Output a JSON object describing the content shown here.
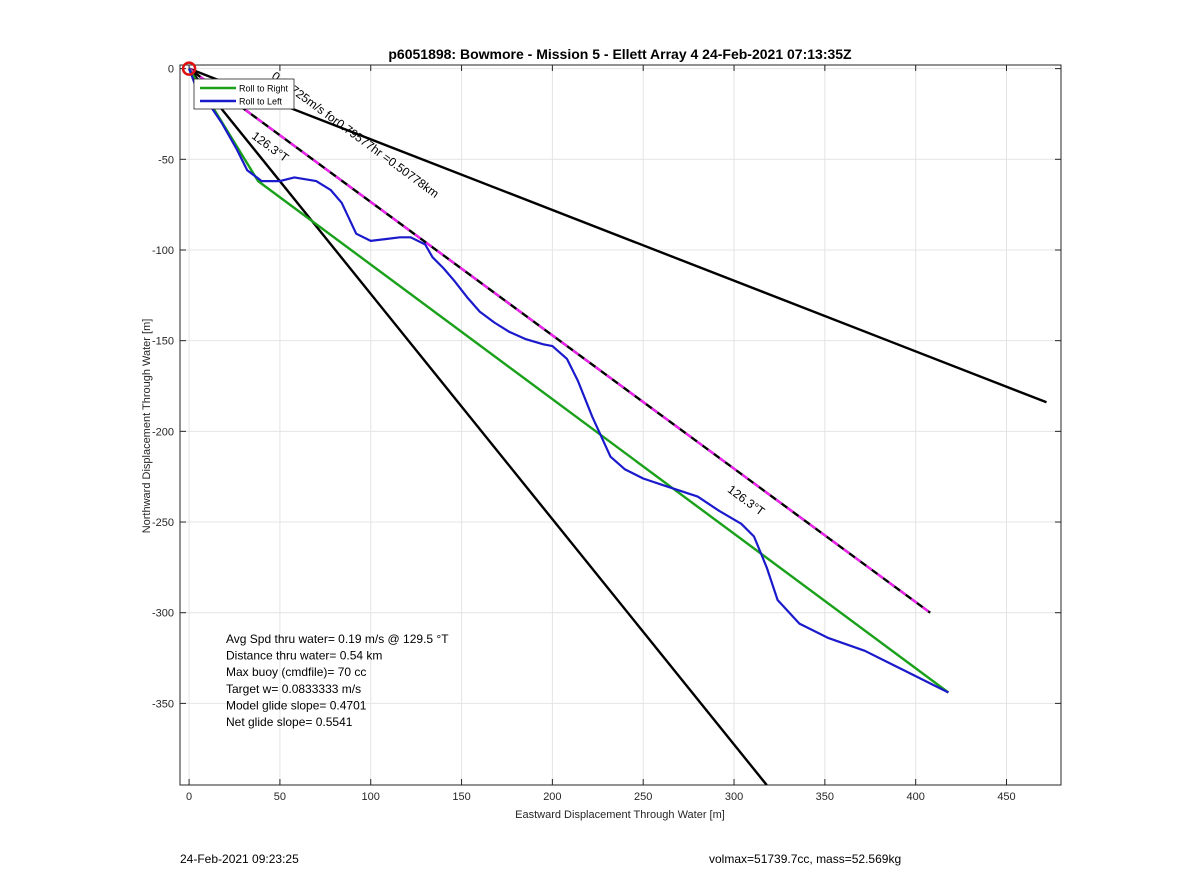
{
  "chart_data": {
    "type": "line",
    "title": "p6051898: Bowmore - Mission 5 - Ellett Array 4 24-Feb-2021 07:13:35Z",
    "xlabel": "Eastward Displacement Through Water [m]",
    "ylabel": "Northward Displacement Through Water [m]",
    "xlim": [
      -5,
      480
    ],
    "ylim": [
      -395,
      2
    ],
    "xticks": [
      0,
      50,
      100,
      150,
      200,
      250,
      300,
      350,
      400,
      450
    ],
    "xtick_labels": [
      "0",
      "50",
      "100",
      "150",
      "200",
      "250",
      "300",
      "350",
      "400",
      "450"
    ],
    "yticks": [
      0,
      -50,
      -100,
      -150,
      -200,
      -250,
      -300,
      -350
    ],
    "ytick_labels": [
      "0",
      "-50",
      "-100",
      "-150",
      "-200",
      "-250",
      "-300",
      "-350"
    ],
    "grid": true,
    "legend_position": "top-left",
    "legend": [
      {
        "label": "Roll to Right",
        "color": "#1aa01a"
      },
      {
        "label": "Roll to Left",
        "color": "#1a1acc"
      }
    ],
    "series": [
      {
        "key": "track",
        "color": "#1a1acc",
        "x": [
          0,
          3,
          10,
          18,
          26,
          32,
          40,
          50,
          58,
          70,
          78,
          84,
          92,
          100,
          108,
          116,
          122,
          130,
          134,
          140,
          146,
          153,
          160,
          168,
          176,
          185,
          195,
          200,
          208,
          214,
          222,
          232,
          240,
          250,
          262,
          280,
          292,
          304,
          311,
          318,
          324,
          336,
          352,
          372,
          392,
          418
        ],
        "y": [
          0,
          -8,
          -18,
          -30,
          -44,
          -56,
          -62,
          -62,
          -60,
          -62,
          -67,
          -74,
          -91,
          -95,
          -94,
          -93,
          -93,
          -97,
          -104,
          -110,
          -117,
          -126,
          -134,
          -140,
          -145,
          -149,
          -152,
          -153,
          -160,
          -172,
          -192,
          -214,
          -221,
          -226,
          -230,
          -236,
          -244,
          -251,
          -258,
          -275,
          -293,
          -306,
          -314,
          -321,
          -331,
          -344
        ]
      },
      {
        "key": "green",
        "color": "#1aa01a",
        "x": [
          0,
          38,
          418
        ],
        "y": [
          0,
          -62,
          -344
        ]
      },
      {
        "key": "ref-shallow",
        "color": "#000000",
        "x": [
          0,
          472
        ],
        "y": [
          0,
          -184
        ]
      },
      {
        "key": "ref-steep",
        "color": "#000000",
        "x": [
          0,
          318
        ],
        "y": [
          0,
          -395
        ]
      },
      {
        "key": "heading-line",
        "color": "#000000",
        "dash_color": "#ee22ee",
        "x": [
          0,
          408
        ],
        "y": [
          0,
          -300
        ]
      }
    ],
    "start_marker": {
      "x": 0,
      "y": 0,
      "color": "#dd1111"
    },
    "annotations": [
      {
        "key": "line-label",
        "text": "0.17725m/s for0.79577hr =0.50778km",
        "x": 45,
        "y": -5,
        "angle_deg": 36.3
      },
      {
        "key": "heading-1",
        "text": "126.3°T",
        "x": 34,
        "y": -38,
        "angle_deg": 36.3
      },
      {
        "key": "heading-2",
        "text": "126.3°T",
        "x": 296,
        "y": -233,
        "angle_deg": 36.3
      }
    ],
    "stats": [
      "Avg Spd thru water=  0.19 m/s @ 129.5 °T",
      "Distance thru water=  0.54 km",
      "Max buoy (cmdfile)= 70 cc",
      "Target w= 0.0833333 m/s",
      "Model glide slope= 0.4701",
      "Net glide slope= 0.5541"
    ]
  },
  "footer": {
    "timestamp": "24-Feb-2021 09:23:25",
    "mass_info": "volmax=51739.7cc, mass=52.569kg"
  }
}
